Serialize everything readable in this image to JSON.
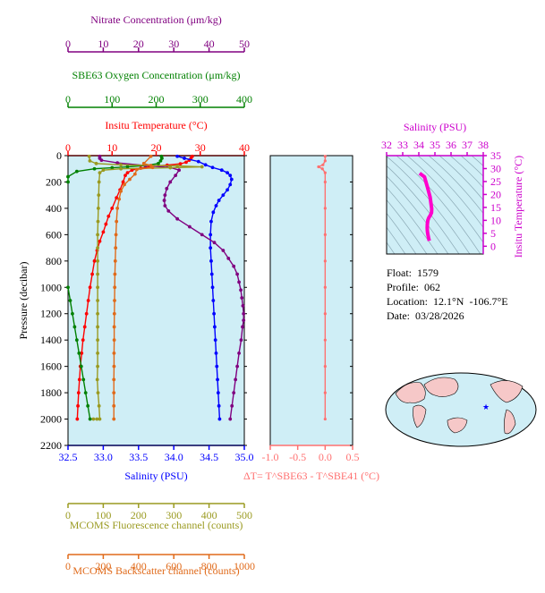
{
  "colors": {
    "nitrate": "#800080",
    "oxygen": "#008000",
    "temperature": "#ff0000",
    "salinity": "#0000ff",
    "fluorescence": "#9a9a20",
    "backscatter": "#e06a1a",
    "delta_t": "#ff7070",
    "ts_curve": "#ff00cc",
    "magenta_axis": "#cc00cc",
    "panel_bg": "#cfeef6"
  },
  "info": {
    "float_line": "Float:  1579",
    "profile_line": "Profile:  062",
    "location_line": "Location:  12.1°N  -106.7°E",
    "date_line": "Date:  03/28/2026"
  },
  "chart_data": [
    {
      "id": "profile_panel",
      "type": "line",
      "ylabel": "Pressure (decibar)",
      "ylim": [
        2200,
        0
      ],
      "yticks": [
        0,
        200,
        400,
        600,
        800,
        1000,
        1200,
        1400,
        1600,
        1800,
        2000,
        2200
      ],
      "grid": false,
      "axes": {
        "nitrate": {
          "label": "Nitrate Concentration (μm/kg)",
          "range": [
            0,
            50
          ],
          "ticks": [
            0,
            10,
            20,
            30,
            40,
            50
          ]
        },
        "oxygen": {
          "label": "SBE63 Oxygen Concentration (μm/kg)",
          "range": [
            0,
            400
          ],
          "ticks": [
            0,
            100,
            200,
            300,
            400
          ]
        },
        "temperature": {
          "label": "Insitu Temperature (°C)",
          "range": [
            0,
            40
          ],
          "ticks": [
            0,
            10,
            20,
            30,
            40
          ]
        },
        "salinity": {
          "label": "Salinity (PSU)",
          "range": [
            32.5,
            35.0
          ],
          "ticks": [
            "32.5",
            "33.0",
            "33.5",
            "34.0",
            "34.5",
            "35.0"
          ]
        },
        "fluorescence": {
          "label": "MCOMS Fluorescence channel (counts)",
          "range": [
            0,
            500
          ],
          "ticks": [
            0,
            100,
            200,
            300,
            400,
            500
          ]
        },
        "backscatter": {
          "label": "MCOMS Backscatter channel (counts)",
          "range": [
            0,
            1000
          ],
          "ticks": [
            0,
            200,
            400,
            600,
            800,
            1000
          ]
        }
      },
      "series": [
        {
          "axis": "temperature",
          "style": "line-dots",
          "points": [
            [
              28.2,
              5
            ],
            [
              27.9,
              20
            ],
            [
              27.5,
              35
            ],
            [
              26.8,
              50
            ],
            [
              25.5,
              62
            ],
            [
              22.5,
              72
            ],
            [
              19.0,
              82
            ],
            [
              16.5,
              95
            ],
            [
              14.5,
              110
            ],
            [
              13.5,
              130
            ],
            [
              13.0,
              150
            ],
            [
              12.5,
              200
            ],
            [
              11.8,
              260
            ],
            [
              11.0,
              320
            ],
            [
              10.0,
              400
            ],
            [
              9.2,
              460
            ],
            [
              8.6,
              520
            ],
            [
              8.0,
              580
            ],
            [
              7.2,
              650
            ],
            [
              6.6,
              720
            ],
            [
              6.0,
              800
            ],
            [
              5.5,
              900
            ],
            [
              5.0,
              1000
            ],
            [
              4.6,
              1100
            ],
            [
              4.2,
              1200
            ],
            [
              3.8,
              1300
            ],
            [
              3.4,
              1400
            ],
            [
              3.1,
              1500
            ],
            [
              2.8,
              1600
            ],
            [
              2.6,
              1700
            ],
            [
              2.4,
              1800
            ],
            [
              2.25,
              1900
            ],
            [
              2.1,
              2000
            ]
          ]
        },
        {
          "axis": "salinity",
          "style": "line-dots",
          "points": [
            [
              34.05,
              5
            ],
            [
              34.15,
              20
            ],
            [
              34.35,
              45
            ],
            [
              34.45,
              70
            ],
            [
              34.55,
              90
            ],
            [
              34.68,
              110
            ],
            [
              34.76,
              130
            ],
            [
              34.8,
              150
            ],
            [
              34.82,
              180
            ],
            [
              34.8,
              220
            ],
            [
              34.76,
              260
            ],
            [
              34.7,
              300
            ],
            [
              34.64,
              340
            ],
            [
              34.6,
              380
            ],
            [
              34.56,
              430
            ],
            [
              34.53,
              500
            ],
            [
              34.52,
              600
            ],
            [
              34.52,
              700
            ],
            [
              34.53,
              800
            ],
            [
              34.54,
              900
            ],
            [
              34.55,
              1000
            ],
            [
              34.56,
              1100
            ],
            [
              34.57,
              1200
            ],
            [
              34.58,
              1300
            ],
            [
              34.59,
              1400
            ],
            [
              34.6,
              1500
            ],
            [
              34.61,
              1600
            ],
            [
              34.62,
              1700
            ],
            [
              34.63,
              1800
            ],
            [
              34.64,
              1900
            ],
            [
              34.65,
              2000
            ]
          ]
        },
        {
          "axis": "oxygen",
          "style": "line-dots",
          "points": [
            [
              212,
              5
            ],
            [
              213,
              20
            ],
            [
              210,
              40
            ],
            [
              205,
              60
            ],
            [
              175,
              75
            ],
            [
              135,
              85
            ],
            [
              100,
              92
            ],
            [
              60,
              100
            ],
            [
              20,
              120
            ],
            [
              0,
              160
            ],
            [
              0,
              200
            ]
          ]
        },
        {
          "axis": "oxygen",
          "style": "line-dots",
          "points": [
            [
              0,
              1000
            ],
            [
              5,
              1100
            ],
            [
              10,
              1200
            ],
            [
              15,
              1300
            ],
            [
              20,
              1400
            ],
            [
              25,
              1500
            ],
            [
              30,
              1600
            ],
            [
              35,
              1700
            ],
            [
              40,
              1800
            ],
            [
              45,
              1900
            ],
            [
              50,
              2000
            ]
          ]
        },
        {
          "axis": "nitrate",
          "style": "line-dots",
          "points": [
            [
              9,
              5
            ],
            [
              9,
              20
            ],
            [
              9.5,
              35
            ],
            [
              14,
              55
            ],
            [
              22,
              75
            ],
            [
              29,
              90
            ],
            [
              31.5,
              110
            ],
            [
              30.5,
              150
            ],
            [
              29,
              200
            ],
            [
              28,
              250
            ],
            [
              27.5,
              300
            ],
            [
              27.3,
              340
            ],
            [
              27.5,
              380
            ],
            [
              28.5,
              420
            ],
            [
              31,
              480
            ],
            [
              34.5,
              540
            ],
            [
              38,
              600
            ],
            [
              41.5,
              660
            ],
            [
              44,
              720
            ],
            [
              45.5,
              780
            ],
            [
              47,
              840
            ],
            [
              48,
              900
            ],
            [
              48.5,
              960
            ],
            [
              49,
              1020
            ],
            [
              49.3,
              1080
            ],
            [
              49.6,
              1140
            ],
            [
              49.8,
              1200
            ],
            [
              49.8,
              1250
            ],
            [
              49.5,
              1300
            ],
            [
              49.1,
              1400
            ],
            [
              48.5,
              1500
            ],
            [
              48,
              1600
            ],
            [
              47.5,
              1700
            ],
            [
              47,
              1800
            ],
            [
              46.5,
              1900
            ],
            [
              46,
              2000
            ]
          ]
        },
        {
          "axis": "fluorescence",
          "style": "line-dots",
          "points": [
            [
              60,
              5
            ],
            [
              62,
              40
            ],
            [
              80,
              60
            ],
            [
              150,
              70
            ],
            [
              310,
              78
            ],
            [
              380,
              85
            ],
            [
              290,
              92
            ],
            [
              150,
              100
            ],
            [
              100,
              110
            ],
            [
              90,
              130
            ],
            [
              88,
              200
            ],
            [
              87,
              300
            ],
            [
              86,
              400
            ],
            [
              85,
              500
            ],
            [
              84,
              600
            ],
            [
              84,
              700
            ],
            [
              84,
              800
            ],
            [
              84,
              900
            ],
            [
              84,
              1000
            ],
            [
              84,
              1100
            ],
            [
              84,
              1200
            ],
            [
              84,
              1300
            ],
            [
              84,
              1400
            ],
            [
              84,
              1500
            ],
            [
              84,
              1600
            ],
            [
              83,
              1700
            ],
            [
              85,
              1800
            ],
            [
              88,
              1900
            ],
            [
              90,
              2000
            ],
            [
              82,
              2000
            ],
            [
              72,
              2000
            ]
          ]
        },
        {
          "axis": "backscatter",
          "style": "line-dots",
          "points": [
            [
              470,
              5
            ],
            [
              430,
              60
            ],
            [
              470,
              75
            ],
            [
              480,
              90
            ],
            [
              390,
              105
            ],
            [
              380,
              140
            ],
            [
              350,
              180
            ],
            [
              320,
              220
            ],
            [
              300,
              270
            ],
            [
              290,
              330
            ],
            [
              280,
              400
            ],
            [
              275,
              500
            ],
            [
              272,
              600
            ],
            [
              270,
              700
            ],
            [
              268,
              800
            ],
            [
              266,
              900
            ],
            [
              265,
              1000
            ],
            [
              264,
              1100
            ],
            [
              263,
              1200
            ],
            [
              262,
              1300
            ],
            [
              262,
              1400
            ],
            [
              261,
              1500
            ],
            [
              261,
              1600
            ],
            [
              260,
              1700
            ],
            [
              260,
              1800
            ],
            [
              260,
              1900
            ],
            [
              260,
              2000
            ]
          ]
        }
      ]
    },
    {
      "id": "delta_panel",
      "type": "line",
      "xlabel": "ΔT= T^SBE63 - T^SBE41 (°C)",
      "xlim": [
        -1.0,
        0.5
      ],
      "xticks": [
        "-1.0",
        "-0.5",
        "0.0",
        "0.5"
      ],
      "ylim": [
        2200,
        0
      ],
      "series": [
        {
          "name": "ΔT",
          "style": "line-dots",
          "points": [
            [
              0.0,
              5
            ],
            [
              0.0,
              40
            ],
            [
              -0.04,
              70
            ],
            [
              -0.12,
              85
            ],
            [
              -0.05,
              100
            ],
            [
              0.0,
              130
            ],
            [
              0.0,
              200
            ],
            [
              0.0,
              400
            ],
            [
              0.0,
              600
            ],
            [
              0.0,
              800
            ],
            [
              0.0,
              1000
            ],
            [
              0.0,
              1200
            ],
            [
              0.0,
              1400
            ],
            [
              0.0,
              1600
            ],
            [
              0.0,
              1800
            ],
            [
              0.0,
              2000
            ]
          ]
        }
      ]
    },
    {
      "id": "ts_panel",
      "type": "line",
      "xlabel": "Salinity (PSU)",
      "ylabel": "Insitu Temperature (°C)",
      "xlim": [
        32,
        38
      ],
      "ylim": [
        -3,
        35
      ],
      "xticks": [
        32,
        33,
        34,
        35,
        36,
        37,
        38
      ],
      "yticks": [
        0,
        5,
        10,
        15,
        20,
        25,
        30,
        35
      ],
      "series": [
        {
          "style": "thick-line",
          "points": [
            [
              34.05,
              28.2
            ],
            [
              34.35,
              26.8
            ],
            [
              34.55,
              22.5
            ],
            [
              34.7,
              19.0
            ],
            [
              34.8,
              14.5
            ],
            [
              34.79,
              13.0
            ],
            [
              34.72,
              12.0
            ],
            [
              34.62,
              11.0
            ],
            [
              34.56,
              10.0
            ],
            [
              34.53,
              8.6
            ],
            [
              34.52,
              7.2
            ],
            [
              34.53,
              6.0
            ],
            [
              34.55,
              5.0
            ],
            [
              34.58,
              4.0
            ],
            [
              34.61,
              3.1
            ],
            [
              34.65,
              2.1
            ]
          ]
        }
      ]
    }
  ]
}
